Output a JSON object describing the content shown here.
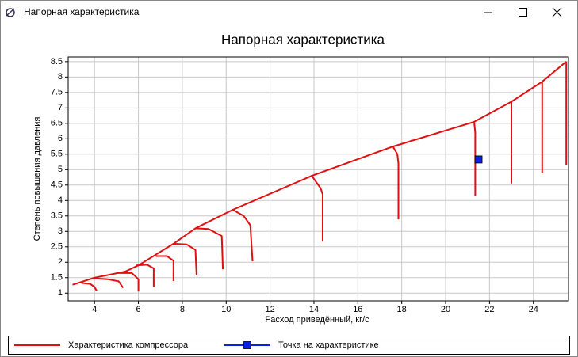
{
  "window": {
    "title": "Напорная характеристика"
  },
  "chart_data": {
    "type": "line",
    "title": "Напорная характеристика",
    "x_label": "Расход приведённый, кг/с",
    "y_label": "Степень повышения давления",
    "xlim": [
      2.8,
      25.6
    ],
    "xticks": [
      4,
      6,
      8,
      10,
      12,
      14,
      16,
      18,
      20,
      22,
      24
    ],
    "ylim": [
      0.75,
      8.65
    ],
    "yticks": [
      1,
      1.5,
      2,
      2.5,
      3,
      3.5,
      4,
      4.5,
      5,
      5.5,
      6,
      6.5,
      7,
      7.5,
      8,
      8.5
    ],
    "grid": true,
    "legend": "bottom",
    "series": [
      {
        "name": "Характеристика компрессора",
        "color": "#e01010",
        "marker": "none",
        "x": [
          3.0,
          4.0,
          5.4,
          6.0,
          7.6,
          8.6,
          10.3,
          13.9,
          17.6,
          21.3,
          23.0,
          24.4,
          25.5,
          null,
          3.4,
          3.8,
          4.0,
          4.1,
          null,
          3.9,
          4.6,
          5.1,
          5.3,
          null,
          5.0,
          5.7,
          6.0,
          6.0,
          null,
          5.9,
          6.4,
          6.7,
          6.7,
          null,
          6.8,
          7.3,
          7.6,
          7.6,
          null,
          7.6,
          8.2,
          8.6,
          8.65,
          null,
          8.6,
          9.2,
          9.8,
          9.85,
          null,
          10.3,
          10.8,
          11.1,
          11.2,
          null,
          13.9,
          14.3,
          14.4,
          14.4,
          null,
          17.6,
          17.8,
          17.85,
          17.85,
          null,
          21.3,
          21.35,
          21.35,
          null,
          23.0,
          23.0,
          null,
          24.4,
          24.4,
          null,
          25.5,
          25.5
        ],
        "values": [
          1.27,
          1.5,
          1.7,
          1.9,
          2.6,
          3.1,
          3.7,
          4.8,
          5.75,
          6.55,
          7.2,
          7.85,
          8.5,
          null,
          1.33,
          1.3,
          1.2,
          1.07,
          null,
          1.48,
          1.45,
          1.38,
          1.17,
          null,
          1.65,
          1.65,
          1.45,
          1.05,
          null,
          1.9,
          1.92,
          1.8,
          1.2,
          null,
          2.2,
          2.2,
          2.05,
          1.39,
          null,
          2.6,
          2.58,
          2.4,
          1.57,
          null,
          3.1,
          3.08,
          2.85,
          1.77,
          null,
          3.7,
          3.5,
          3.2,
          2.03,
          null,
          4.8,
          4.4,
          4.2,
          2.67,
          null,
          5.75,
          5.5,
          5.2,
          3.39,
          null,
          6.55,
          6.2,
          4.14,
          null,
          7.2,
          4.55,
          null,
          7.85,
          4.9,
          null,
          8.5,
          5.16
        ]
      },
      {
        "name": "Точка на характеристике",
        "color": "#0a1ee6",
        "marker": "square",
        "x": [
          21.5
        ],
        "values": [
          5.33
        ]
      }
    ]
  }
}
